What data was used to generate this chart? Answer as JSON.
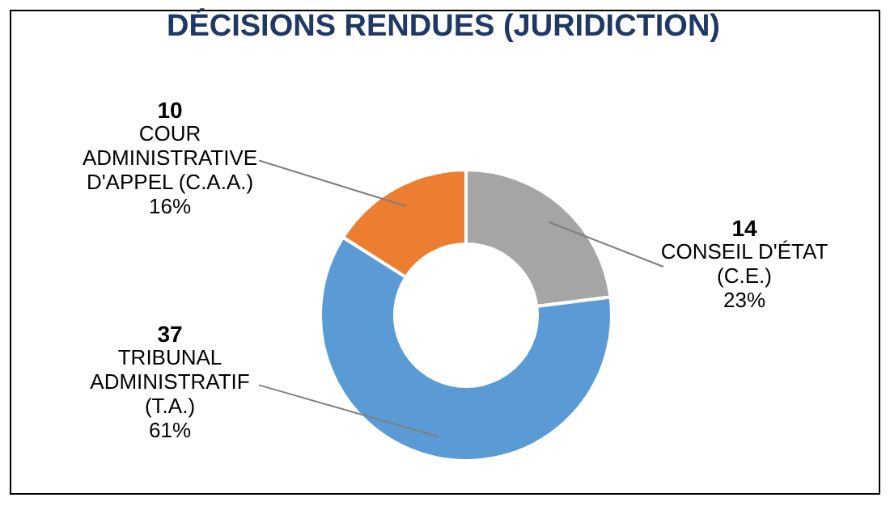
{
  "chart_data": {
    "type": "donut",
    "title": "DÉCISIONS RENDUES (JURIDICTION)",
    "categories": [
      "CONSEIL D'ÉTAT (C.E.)",
      "TRIBUNAL ADMINISTRATIF (T.A.)",
      "COUR ADMINISTRATIVE D'APPEL (C.A.A.)"
    ],
    "values": [
      23,
      61,
      16
    ],
    "colors": [
      "#a5a5a5",
      "#5b9bd5",
      "#ed7d31"
    ],
    "value_labels": [
      "23%",
      "61%",
      "16%"
    ],
    "annotations": [
      {
        "text": "14",
        "x": "CONSEIL D'ÉTAT (C.E.)"
      },
      {
        "text": "37",
        "x": "TRIBUNAL ADMINISTRATIF (T.A.)"
      },
      {
        "text": "10",
        "x": "COUR ADMINISTRATIVE D'APPEL (C.A.A.)"
      }
    ]
  }
}
